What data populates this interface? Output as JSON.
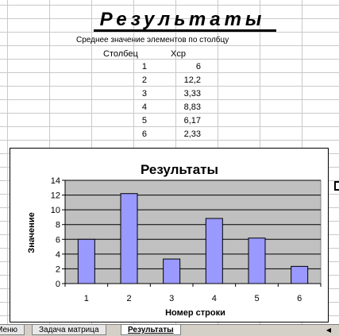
{
  "sheet": {
    "title": "Результаты",
    "subtitle": "Среднее значение элементов по столбцу",
    "header_col": "Столбец",
    "header_val": "Хср",
    "rows": [
      {
        "col": "1",
        "val": "6"
      },
      {
        "col": "2",
        "val": "12,2"
      },
      {
        "col": "3",
        "val": "3,33"
      },
      {
        "col": "4",
        "val": "8,83"
      },
      {
        "col": "5",
        "val": "6,17"
      },
      {
        "col": "6",
        "val": "2,33"
      }
    ]
  },
  "chart_data": {
    "type": "bar",
    "title": "Результаты",
    "xlabel": "Номер строки",
    "ylabel": "Значение",
    "categories": [
      "1",
      "2",
      "3",
      "4",
      "5",
      "6"
    ],
    "values": [
      6,
      12.2,
      3.33,
      8.83,
      6.17,
      2.33
    ],
    "ylim": [
      0,
      14
    ],
    "yticks": [
      "0",
      "2",
      "4",
      "6",
      "8",
      "10",
      "12",
      "14"
    ],
    "ytick_values": [
      0,
      2,
      4,
      6,
      8,
      10,
      12,
      14
    ],
    "grid": true,
    "colors": {
      "bar": "#9999ff",
      "plot_bg": "#c0c0c0"
    }
  },
  "tabs": [
    {
      "label": "Меню"
    },
    {
      "label": "Задача матрица"
    },
    {
      "label": "Результаты",
      "active": true
    }
  ],
  "icons": {
    "scroll": "scroll-left-icon"
  }
}
